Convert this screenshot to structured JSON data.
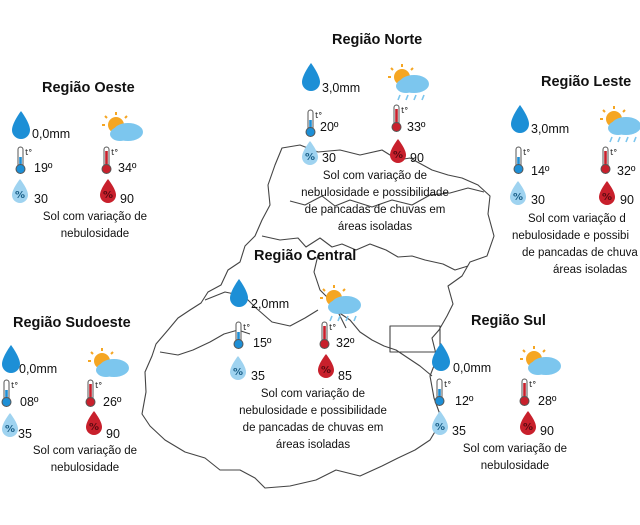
{
  "regions": {
    "norte": {
      "title": "Região Norte",
      "rain": "3,0mm",
      "tmin": "20º",
      "tmax": "33º",
      "hmin": "30",
      "hmax": "90",
      "desc": [
        "Sol com variação de",
        "nebulosidade e possibilidade",
        "de pancadas de chuvas em",
        "áreas isoladas"
      ],
      "icon": "sun-cloud-rain-icon"
    },
    "oeste": {
      "title": "Região Oeste",
      "rain": "0,0mm",
      "tmin": "19º",
      "tmax": "34º",
      "hmin": "30",
      "hmax": "90",
      "desc": [
        "Sol com variação de",
        "nebulosidade"
      ],
      "icon": "sun-cloud-icon"
    },
    "leste": {
      "title": "Região Leste",
      "rain": "3,0mm",
      "tmin": "14º",
      "tmax": "32º",
      "hmin": "30",
      "hmax": "90",
      "desc": [
        "Sol com variação d",
        "nebulosidade e possibi",
        "de pancadas de chuva",
        "áreas isoladas"
      ],
      "icon": "sun-cloud-rain-icon"
    },
    "central": {
      "title": "Região Central",
      "rain": "2,0mm",
      "tmin": "15º",
      "tmax": "32º",
      "hmin": "35",
      "hmax": "85",
      "desc": [
        "Sol com variação de",
        "nebulosidade e possibilidade",
        "de pancadas de chuvas em",
        "áreas isoladas"
      ],
      "icon": "sun-cloud-rain-icon"
    },
    "sudoeste": {
      "title": "Região Sudoeste",
      "rain": "0,0mm",
      "tmin": "08º",
      "tmax": "26º",
      "hmin": "35",
      "hmax": "90",
      "desc": [
        "Sol com variação de",
        "nebulosidade"
      ],
      "icon": "sun-cloud-icon"
    },
    "sul": {
      "title": "Região Sul",
      "rain": "0,0mm",
      "tmin": "12º",
      "tmax": "28º",
      "hmin": "35",
      "hmax": "90",
      "desc": [
        "Sol com variação de",
        "nebulosidade"
      ],
      "icon": "sun-cloud-icon"
    }
  },
  "symbols": {
    "temp": "t°",
    "humidity": "%"
  },
  "colors": {
    "rain_drop": "#1d8fd6",
    "thermo_cold": "#1d8fd6",
    "thermo_hot": "#c8202c",
    "humidity_low": "#9fd3f0",
    "humidity_high": "#c8202c",
    "sun": "#f5a623",
    "cloud": "#7cc6ee"
  }
}
